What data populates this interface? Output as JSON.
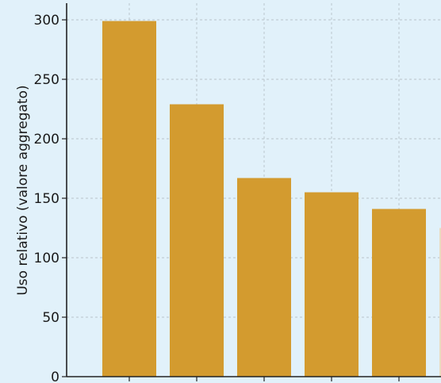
{
  "chart_data": {
    "type": "bar",
    "title": "",
    "xlabel": "",
    "ylabel": "Uso relativo (valore aggregato)",
    "y_ticks": [
      "0",
      "50",
      "100",
      "150",
      "200",
      "250",
      "300"
    ],
    "ylim": [
      0,
      313
    ],
    "grid": true,
    "series": [
      {
        "values": [
          299,
          229,
          167,
          155,
          141,
          125
        ],
        "color": "#d39b2f"
      }
    ],
    "colors": {
      "background": "#e1f1fa",
      "grid": "#b9c3c9",
      "axis": "#222222",
      "last_bar_partial": "#eadbc0"
    }
  }
}
